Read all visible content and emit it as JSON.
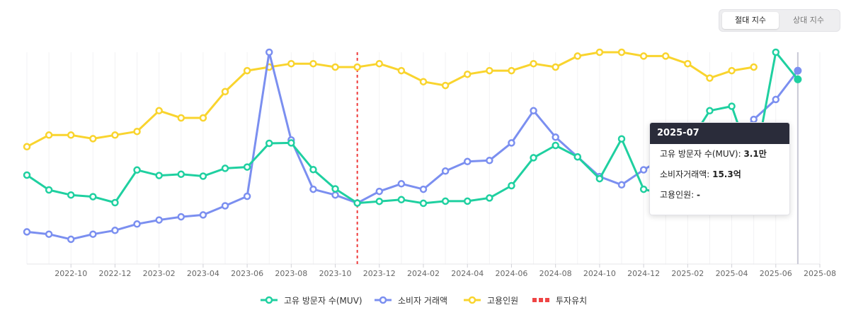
{
  "toggle": {
    "absolute_label": "절대 지수",
    "relative_label": "상대 지수"
  },
  "tooltip": {
    "title": "2025-07",
    "rows": [
      {
        "label": "고유 방문자 수(MUV)",
        "value": "3.1만"
      },
      {
        "label": "소비자거래액",
        "value": "15.3억"
      },
      {
        "label": "고용인원",
        "value": "-"
      }
    ]
  },
  "legend": {
    "items": [
      {
        "label": "고유 방문자 수(MUV)",
        "color": "#1fd0a0",
        "kind": "line"
      },
      {
        "label": "소비자 거래액",
        "color": "#7b8ff0",
        "kind": "line"
      },
      {
        "label": "고용인원",
        "color": "#f9d42e",
        "kind": "line"
      },
      {
        "label": "투자유치",
        "color": "#ef4444",
        "kind": "dash"
      }
    ]
  },
  "chart_data": {
    "type": "line",
    "x_start": "2022-08",
    "x_end": "2025-08",
    "xticks": [
      "2022-10",
      "2022-12",
      "2023-02",
      "2023-04",
      "2023-06",
      "2023-08",
      "2023-10",
      "2023-12",
      "2024-02",
      "2024-04",
      "2024-06",
      "2024-08",
      "2024-10",
      "2024-12",
      "2025-02",
      "2025-04",
      "2025-06",
      "2025-08"
    ],
    "ylim": [
      0,
      100
    ],
    "investment_marker": "2023-11",
    "hover_x": "2025-07",
    "series": [
      {
        "name": "고유 방문자 수(MUV)",
        "color": "#1fd0a0",
        "x": [
          "2022-08",
          "2022-09",
          "2022-10",
          "2022-11",
          "2022-12",
          "2023-01",
          "2023-02",
          "2023-03",
          "2023-04",
          "2023-05",
          "2023-06",
          "2023-07",
          "2023-08",
          "2023-09",
          "2023-10",
          "2023-11",
          "2023-12",
          "2024-01",
          "2024-02",
          "2024-03",
          "2024-04",
          "2024-05",
          "2024-06",
          "2024-07",
          "2024-08",
          "2024-09",
          "2024-10",
          "2024-11",
          "2024-12",
          "2025-01",
          "2025-02",
          "2025-03",
          "2025-04",
          "2025-05",
          "2025-06",
          "2025-07"
        ],
        "values": [
          42,
          35,
          32.6,
          31.8,
          29,
          44.4,
          41.8,
          42.4,
          41.5,
          45.2,
          45.8,
          57,
          57.2,
          44.6,
          35.5,
          28.8,
          29.6,
          30.4,
          28.7,
          29.7,
          29.7,
          31.2,
          37,
          50.2,
          56,
          50.6,
          40.3,
          59.1,
          35.3,
          33,
          56,
          72.4,
          74.5,
          44.5,
          100,
          87.2
        ]
      },
      {
        "name": "소비자 거래액",
        "color": "#7b8ff0",
        "x": [
          "2022-08",
          "2022-09",
          "2022-10",
          "2022-11",
          "2022-12",
          "2023-01",
          "2023-02",
          "2023-03",
          "2023-04",
          "2023-05",
          "2023-06",
          "2023-07",
          "2023-08",
          "2023-09",
          "2023-10",
          "2023-11",
          "2023-12",
          "2024-01",
          "2024-02",
          "2024-03",
          "2024-04",
          "2024-05",
          "2024-06",
          "2024-07",
          "2024-08",
          "2024-09",
          "2024-10",
          "2024-11",
          "2024-12",
          "2025-01",
          "2025-02",
          "2025-03",
          "2025-04",
          "2025-05",
          "2025-06",
          "2025-07"
        ],
        "values": [
          15.2,
          14.1,
          11.7,
          14.1,
          15.9,
          18.9,
          20.8,
          22.3,
          23.2,
          27.5,
          32,
          100,
          58.6,
          35.3,
          32.6,
          28.8,
          34.3,
          37.9,
          35.3,
          43.9,
          48.4,
          48.9,
          57.2,
          72.4,
          59.9,
          50.6,
          41.3,
          37.4,
          44.5,
          50.6,
          62.1,
          61.6,
          56.9,
          68.3,
          77.7,
          91.3
        ]
      },
      {
        "name": "고용인원",
        "color": "#f9d42e",
        "x": [
          "2022-08",
          "2022-09",
          "2022-10",
          "2022-11",
          "2022-12",
          "2023-01",
          "2023-02",
          "2023-03",
          "2023-04",
          "2023-05",
          "2023-06",
          "2023-07",
          "2023-08",
          "2023-09",
          "2023-10",
          "2023-11",
          "2023-12",
          "2024-01",
          "2024-02",
          "2024-03",
          "2024-04",
          "2024-05",
          "2024-06",
          "2024-07",
          "2024-08",
          "2024-09",
          "2024-10",
          "2024-11",
          "2024-12",
          "2025-01",
          "2025-02",
          "2025-03",
          "2025-04",
          "2025-05"
        ],
        "values": [
          55.4,
          60.9,
          60.9,
          59.2,
          60.9,
          62.6,
          72.4,
          69,
          69,
          81.4,
          91.3,
          93,
          94.6,
          94.6,
          93,
          93,
          94.6,
          91.3,
          86.1,
          84.3,
          89.6,
          91.3,
          91.3,
          94.6,
          93,
          98.2,
          100,
          100,
          98.2,
          98.2,
          94.6,
          87.8,
          91.3,
          93
        ]
      }
    ]
  }
}
